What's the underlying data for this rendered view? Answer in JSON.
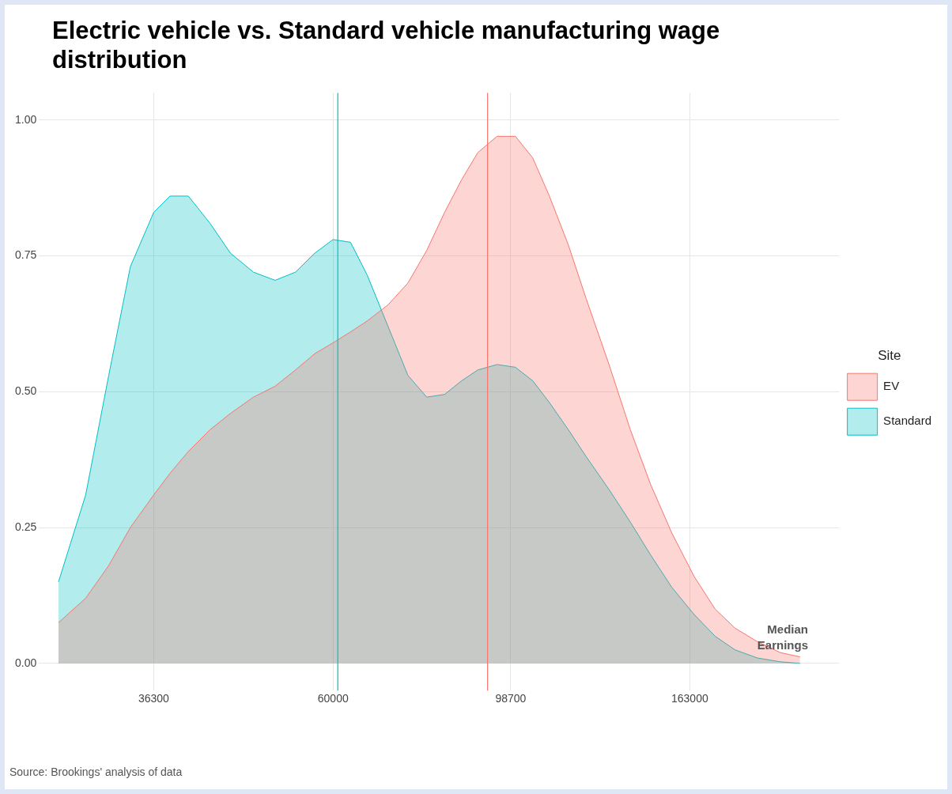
{
  "chart_data": {
    "type": "area",
    "title": "Electric vehicle vs. Standard vehicle manufacturing wage distribution",
    "legend_title": "Site",
    "log": "x",
    "grid": true,
    "legend": "right",
    "x": [
      27800,
      30000,
      32000,
      34000,
      36300,
      38000,
      40000,
      42500,
      45000,
      48000,
      51000,
      54000,
      57000,
      60000,
      63000,
      66000,
      70000,
      74000,
      78000,
      82000,
      86000,
      90000,
      95000,
      100000,
      105000,
      110000,
      116000,
      122000,
      130000,
      138000,
      146000,
      155000,
      165000,
      175000,
      185000,
      197000,
      210000,
      222000
    ],
    "series": [
      {
        "name": "EV",
        "color": "#f8766d",
        "values": [
          0.075,
          0.12,
          0.18,
          0.25,
          0.31,
          0.35,
          0.39,
          0.43,
          0.46,
          0.49,
          0.51,
          0.54,
          0.57,
          0.59,
          0.61,
          0.63,
          0.66,
          0.7,
          0.76,
          0.83,
          0.89,
          0.94,
          0.97,
          0.97,
          0.93,
          0.86,
          0.77,
          0.67,
          0.55,
          0.43,
          0.33,
          0.24,
          0.16,
          0.1,
          0.065,
          0.04,
          0.02,
          0.012
        ]
      },
      {
        "name": "Standard",
        "color": "#00bfc4",
        "values": [
          0.15,
          0.31,
          0.53,
          0.73,
          0.83,
          0.86,
          0.86,
          0.81,
          0.755,
          0.72,
          0.705,
          0.72,
          0.755,
          0.78,
          0.775,
          0.715,
          0.62,
          0.53,
          0.49,
          0.495,
          0.52,
          0.54,
          0.55,
          0.545,
          0.52,
          0.48,
          0.43,
          0.38,
          0.32,
          0.26,
          0.2,
          0.14,
          0.09,
          0.05,
          0.025,
          0.01,
          0.003,
          0
        ]
      }
    ],
    "xlim": [
      26670,
      247900
    ],
    "xticks": [
      36300,
      60000,
      98700,
      163000
    ],
    "ylim": [
      -0.05,
      1.05
    ],
    "yticks": [
      {
        "value": 0,
        "label": "0.00"
      },
      {
        "value": 0.25,
        "label": "0.25"
      },
      {
        "value": 0.5,
        "label": "0.50"
      },
      {
        "value": 0.75,
        "label": "0.75"
      },
      {
        "value": 1,
        "label": "1.00"
      }
    ],
    "ref_lines": [
      {
        "axis": "x",
        "value": 60800,
        "color": "#00bfc4"
      },
      {
        "axis": "x",
        "value": 92500,
        "color": "#f8766d"
      }
    ],
    "annotations": [
      "Median\nEarnings",
      "Source: Brookings' analysis of data"
    ]
  }
}
